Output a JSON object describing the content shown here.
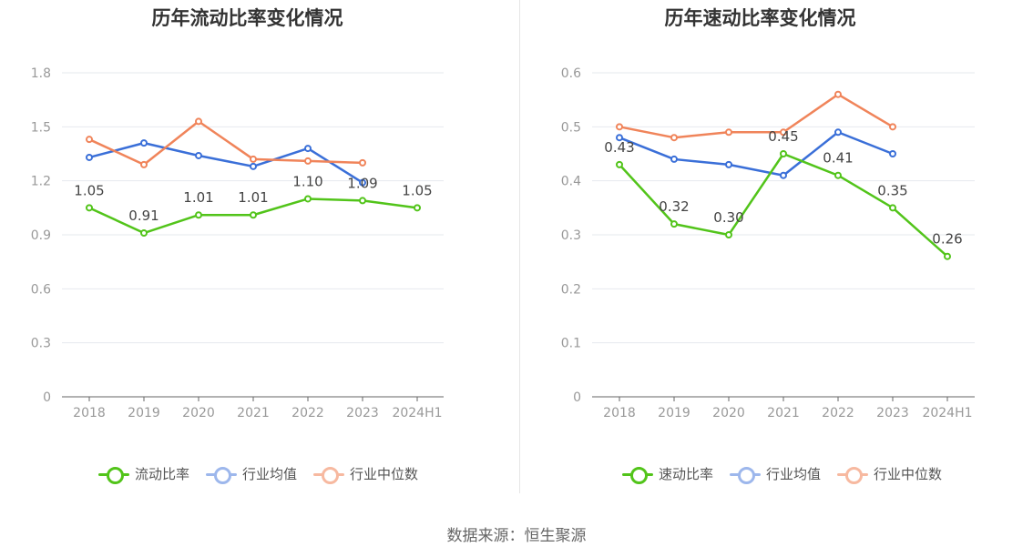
{
  "footer": {
    "source_label": "数据来源：恒生聚源"
  },
  "chart_data": [
    {
      "type": "line",
      "title": "历年流动比率变化情况",
      "categories": [
        "2018",
        "2019",
        "2020",
        "2021",
        "2022",
        "2023",
        "2024H1"
      ],
      "ylim": [
        0,
        1.8
      ],
      "yticks": [
        "0",
        "0.3",
        "0.6",
        "0.9",
        "1.2",
        "1.5",
        "1.8"
      ],
      "grid": true,
      "legend_position": "bottom",
      "series": [
        {
          "name": "流动比率",
          "color": "#52c41a",
          "values": [
            1.05,
            0.91,
            1.01,
            1.01,
            1.1,
            1.09,
            1.05
          ],
          "labels": [
            "1.05",
            "0.91",
            "1.01",
            "1.01",
            "1.10",
            "1.09",
            "1.05"
          ]
        },
        {
          "name": "行业均值",
          "color": "#3a6fd8",
          "values": [
            1.33,
            1.41,
            1.34,
            1.28,
            1.38,
            1.19,
            null
          ]
        },
        {
          "name": "行业中位数",
          "color": "#f0845a",
          "values": [
            1.43,
            1.29,
            1.53,
            1.32,
            1.31,
            1.3,
            null
          ]
        }
      ]
    },
    {
      "type": "line",
      "title": "历年速动比率变化情况",
      "categories": [
        "2018",
        "2019",
        "2020",
        "2021",
        "2022",
        "2023",
        "2024H1"
      ],
      "ylim": [
        0,
        0.6
      ],
      "yticks": [
        "0",
        "0.1",
        "0.2",
        "0.3",
        "0.4",
        "0.5",
        "0.6"
      ],
      "grid": true,
      "legend_position": "bottom",
      "series": [
        {
          "name": "速动比率",
          "color": "#52c41a",
          "values": [
            0.43,
            0.32,
            0.3,
            0.45,
            0.41,
            0.35,
            0.26
          ],
          "labels": [
            "0.43",
            "0.32",
            "0.30",
            "0.45",
            "0.41",
            "0.35",
            "0.26"
          ]
        },
        {
          "name": "行业均值",
          "color": "#3a6fd8",
          "values": [
            0.48,
            0.44,
            0.43,
            0.41,
            0.49,
            0.45,
            null
          ]
        },
        {
          "name": "行业中位数",
          "color": "#f0845a",
          "values": [
            0.5,
            0.48,
            0.49,
            0.49,
            0.56,
            0.5,
            null
          ]
        }
      ]
    }
  ]
}
